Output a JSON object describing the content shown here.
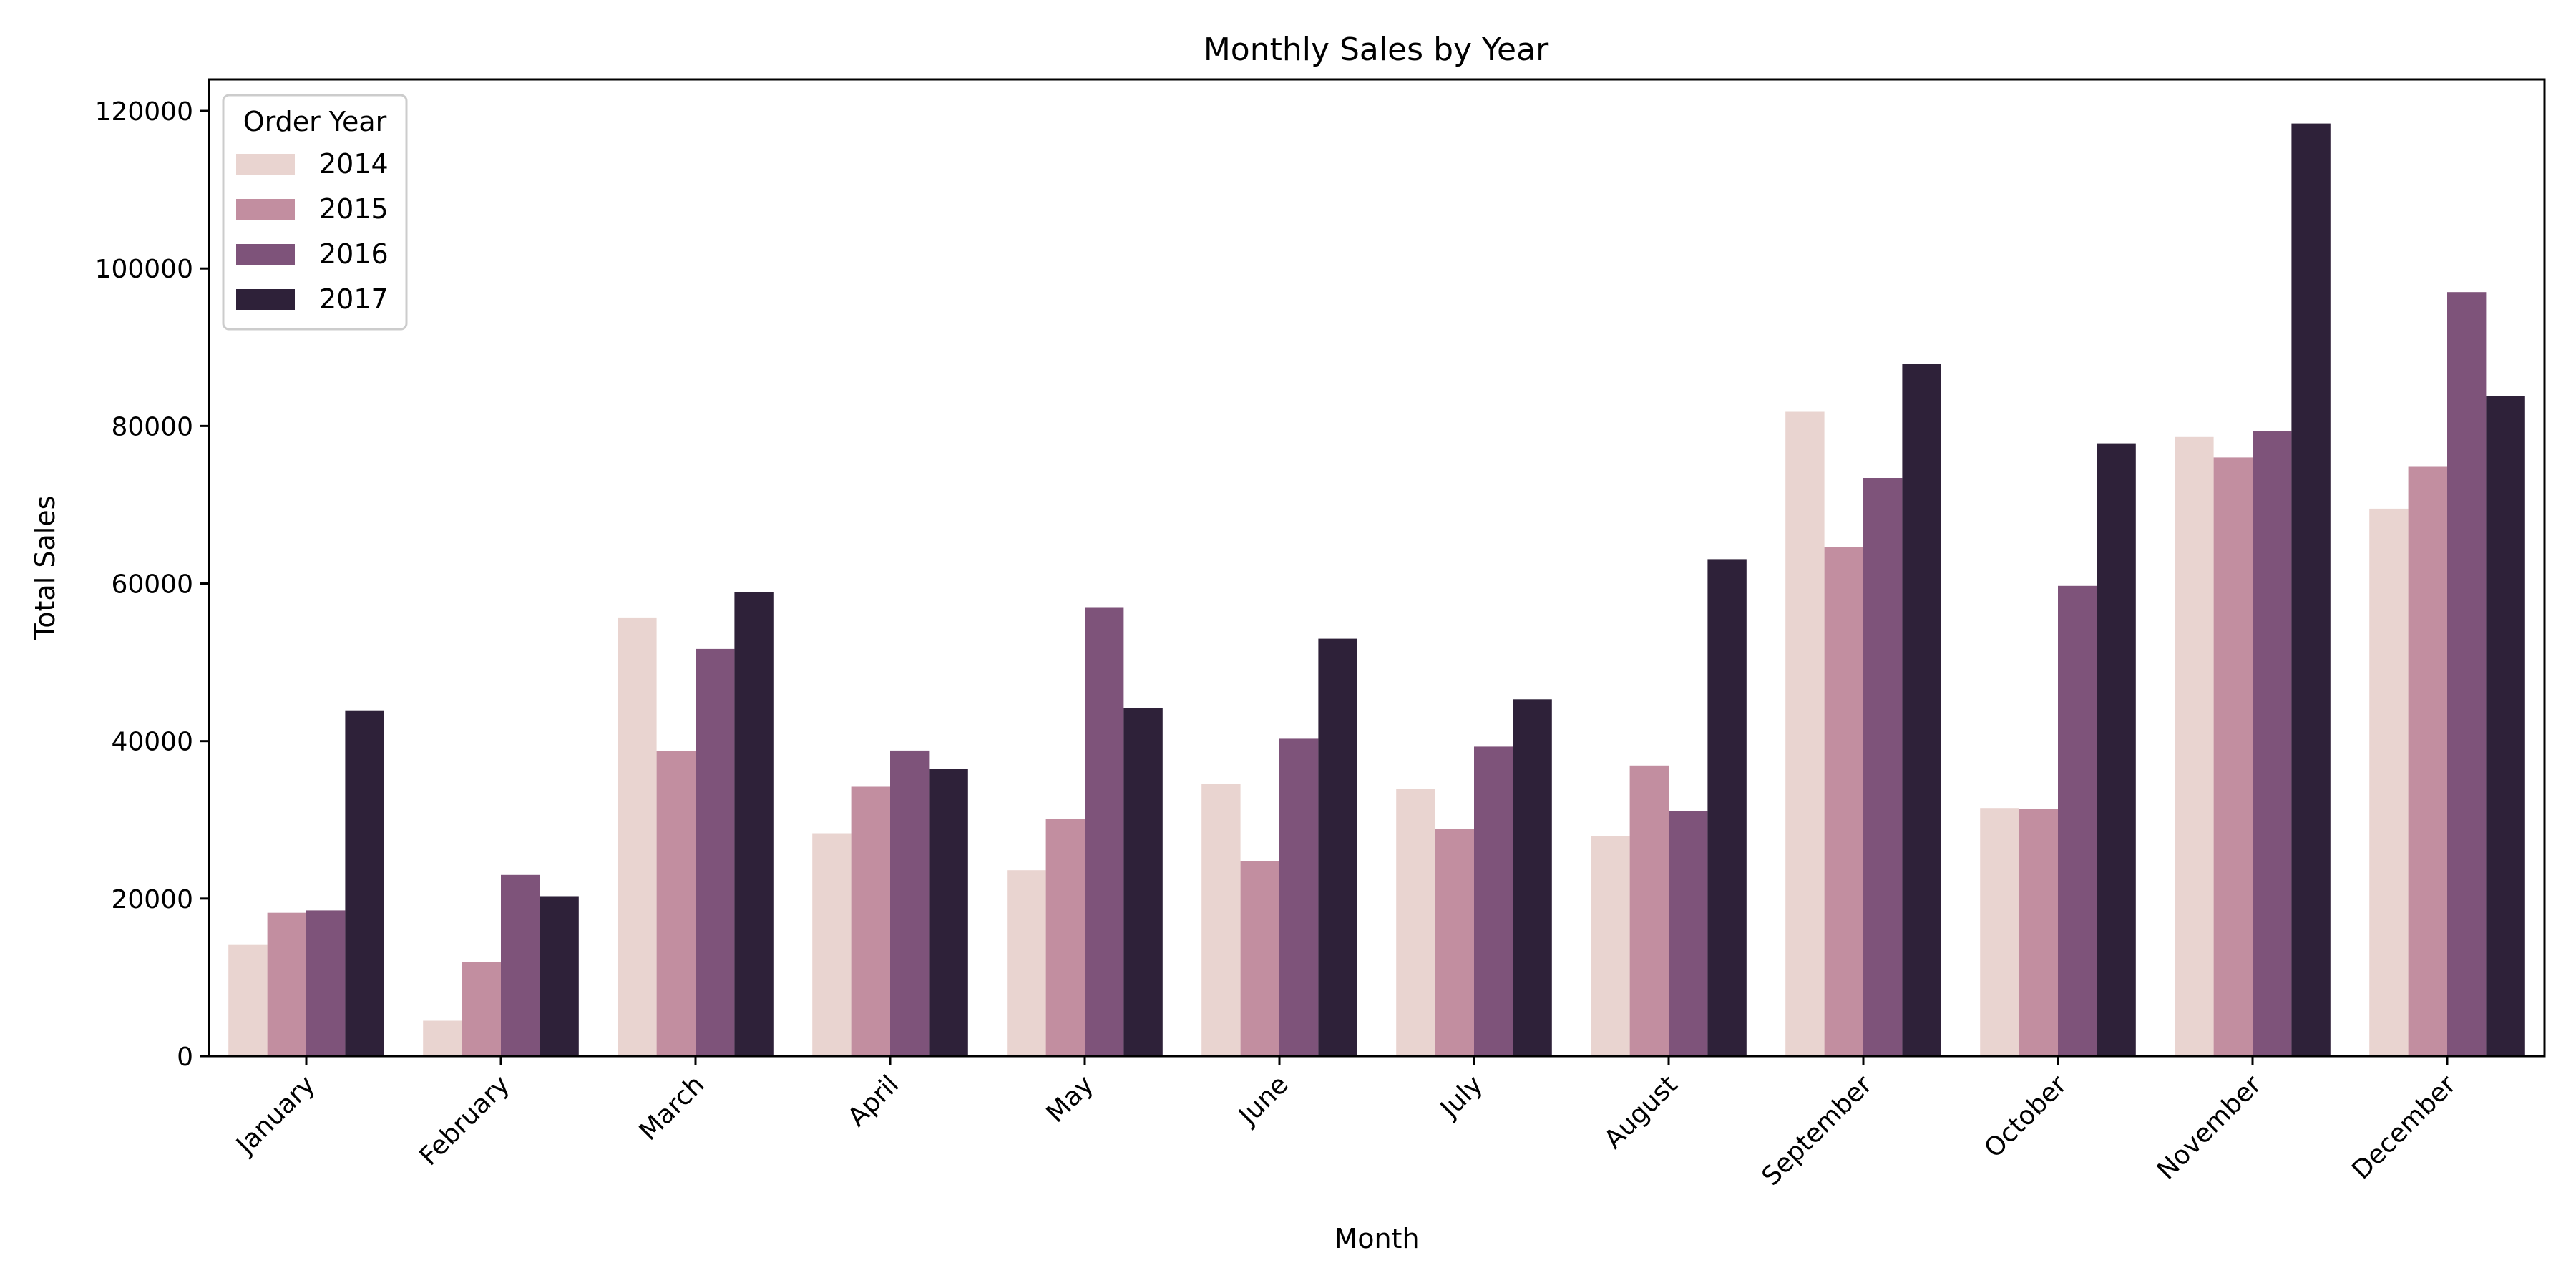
{
  "chart_data": {
    "type": "bar",
    "title": "Monthly Sales by Year",
    "xlabel": "Month",
    "ylabel": "Total Sales",
    "ylim": [
      0,
      124000
    ],
    "yticks": [
      0,
      20000,
      40000,
      60000,
      80000,
      100000,
      120000
    ],
    "categories": [
      "January",
      "February",
      "March",
      "April",
      "May",
      "June",
      "July",
      "August",
      "September",
      "October",
      "November",
      "December"
    ],
    "legend": {
      "title": "Order Year",
      "position": "top-left"
    },
    "grid": false,
    "series": [
      {
        "name": "2014",
        "color": "#e9d4d0",
        "values": [
          14200,
          4500,
          55700,
          28300,
          23600,
          34600,
          33900,
          27900,
          81800,
          31500,
          78600,
          69500
        ]
      },
      {
        "name": "2015",
        "color": "#c28ea0",
        "values": [
          18200,
          11900,
          38700,
          34200,
          30100,
          24800,
          28800,
          36900,
          64600,
          31400,
          76000,
          74900
        ]
      },
      {
        "name": "2016",
        "color": "#7e537a",
        "values": [
          18500,
          23000,
          51700,
          38800,
          57000,
          40300,
          39300,
          31100,
          73400,
          59700,
          79400,
          97000
        ]
      },
      {
        "name": "2017",
        "color": "#2e2139",
        "values": [
          43900,
          20300,
          58900,
          36500,
          44200,
          53000,
          45300,
          63100,
          87900,
          77800,
          118400,
          83800
        ]
      }
    ]
  }
}
